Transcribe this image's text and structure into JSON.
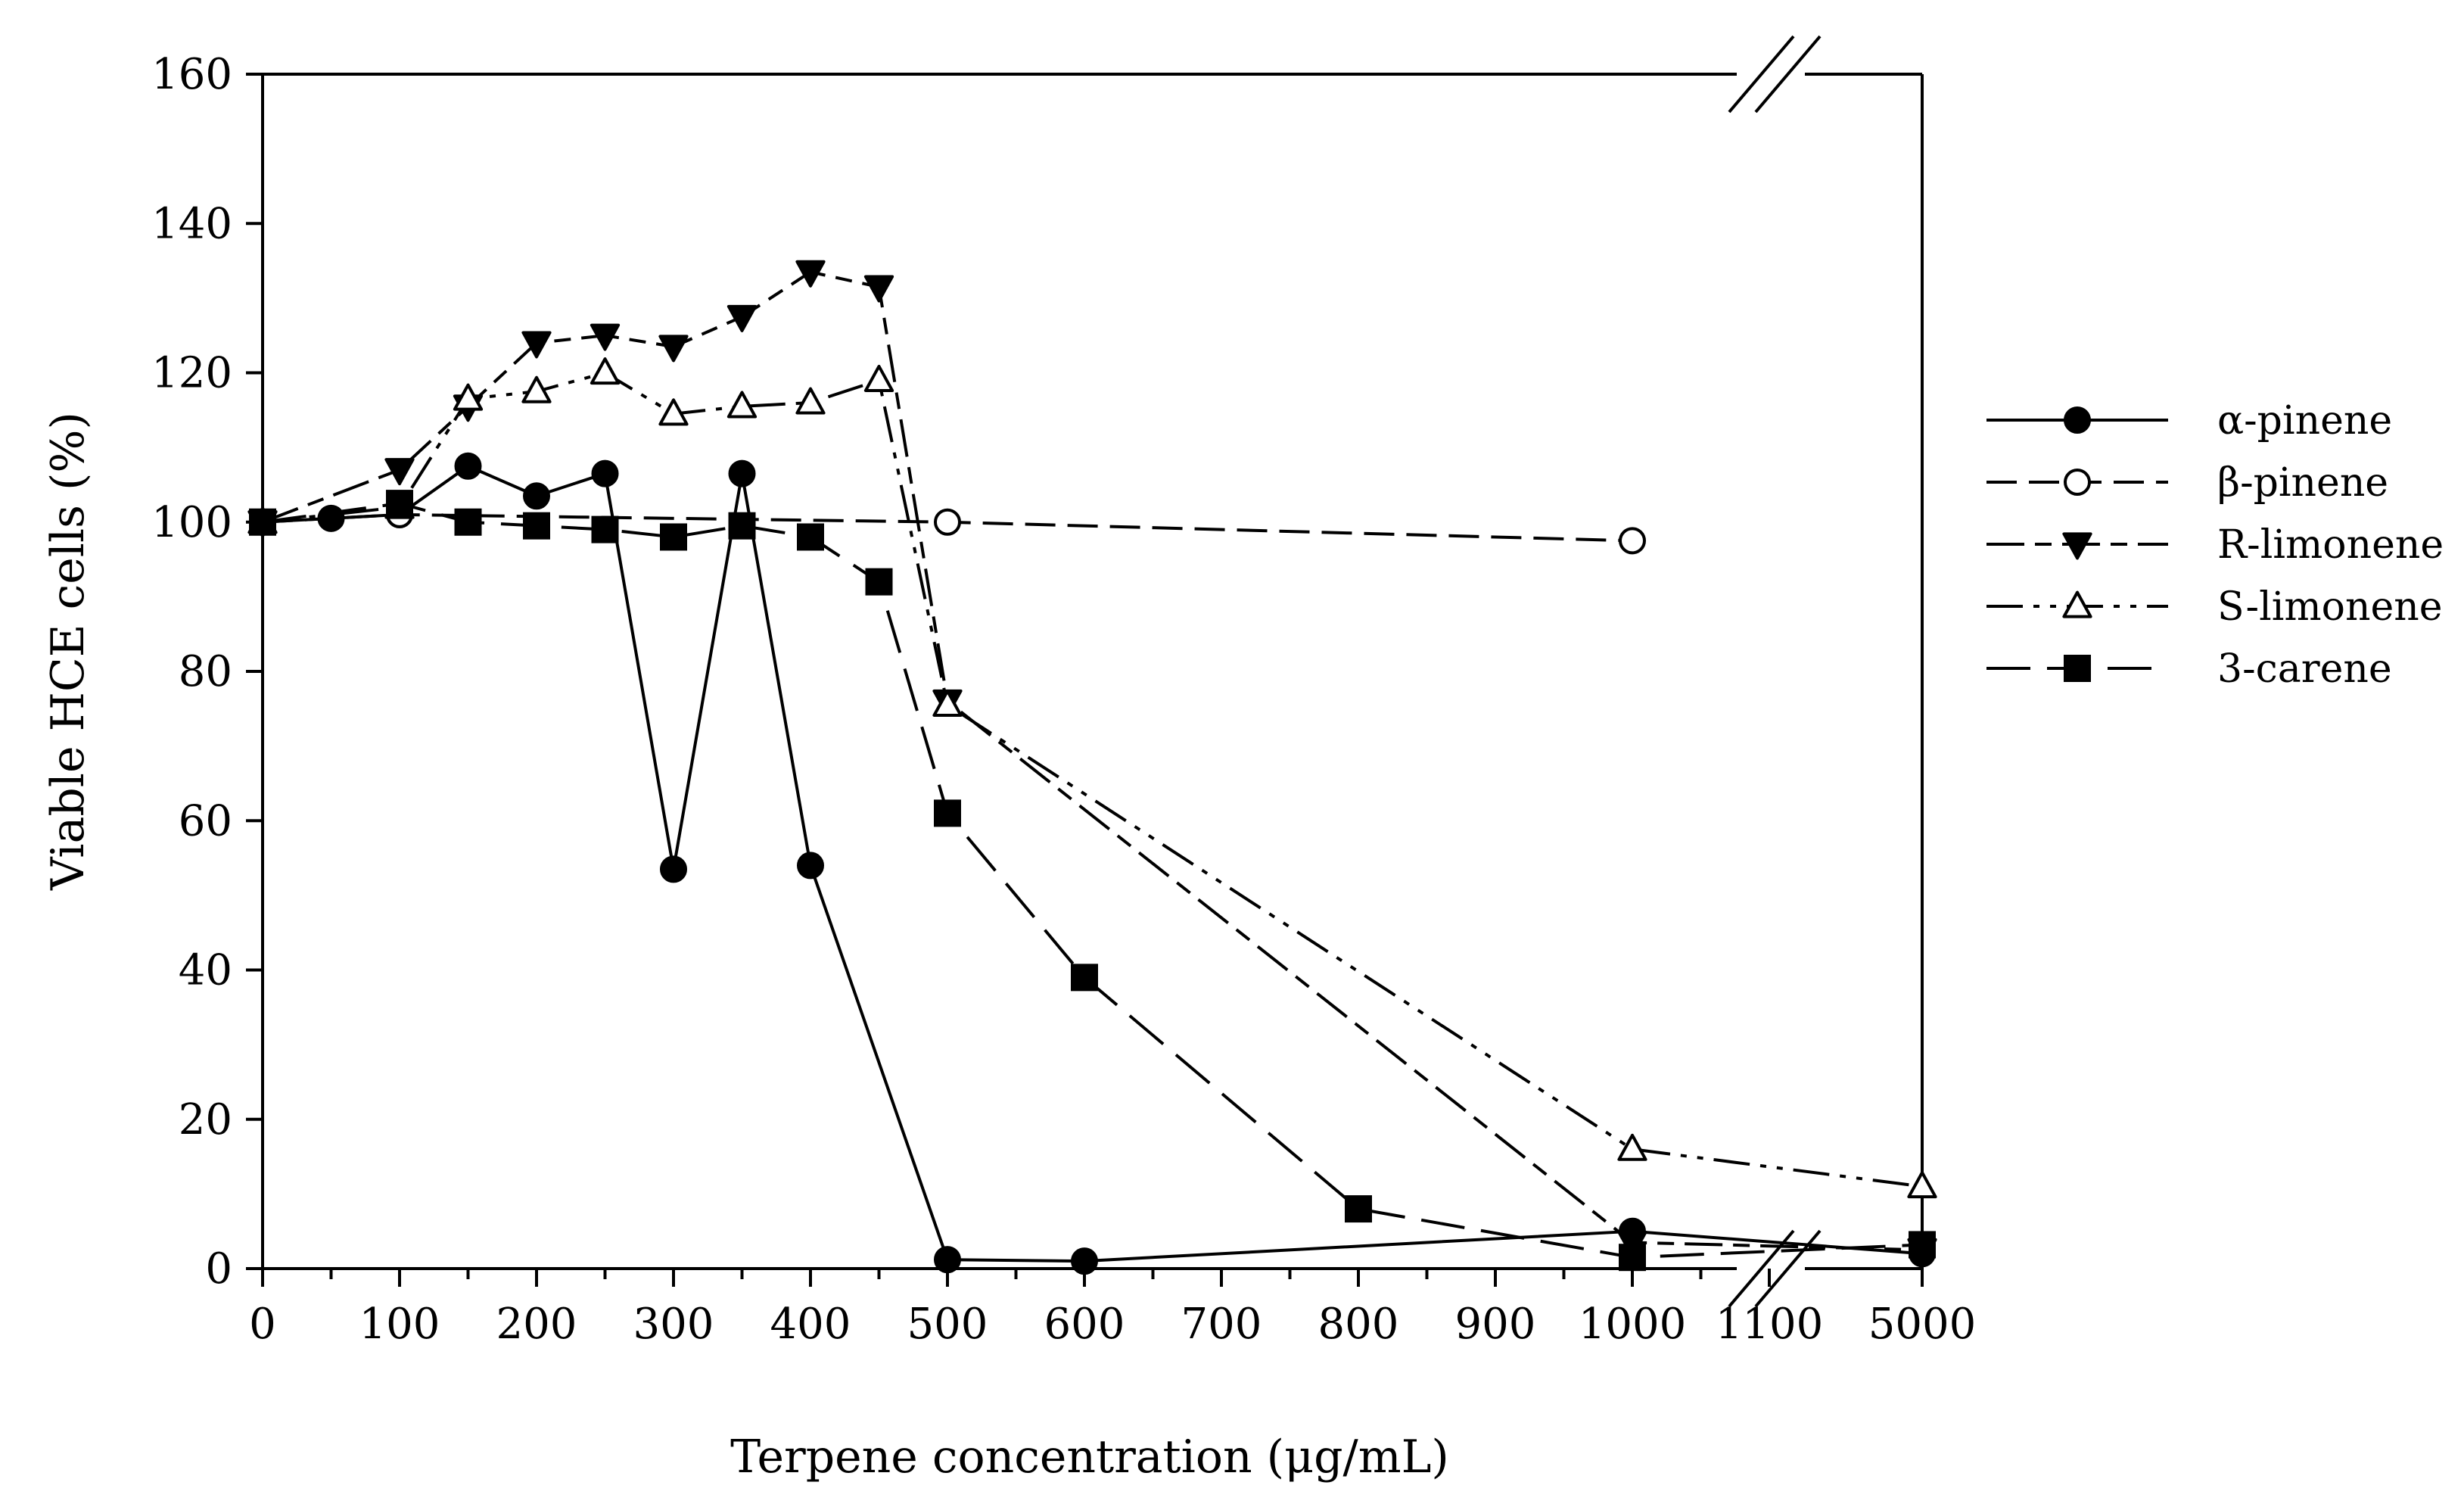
{
  "chart_data": {
    "type": "line",
    "title": "",
    "xlabel": "Terpene concentration (μg/mL)",
    "ylabel": "Viable HCE cells (%)",
    "ylim": [
      0,
      160
    ],
    "y_ticks": [
      "0",
      "20",
      "40",
      "60",
      "80",
      "100",
      "120",
      "140",
      "160"
    ],
    "x_ticks": [
      "0",
      "100",
      "200",
      "300",
      "400",
      "500",
      "600",
      "700",
      "800",
      "900",
      "1000",
      "1100",
      "5000"
    ],
    "x_axis_break": "between 1100 and 5000",
    "grid": false,
    "legend_position": "right",
    "series": [
      {
        "name": "α-pinene",
        "marker": "filled-circle",
        "line": "solid",
        "x": [
          0,
          50,
          100,
          150,
          200,
          250,
          300,
          350,
          400,
          500,
          600,
          1000,
          5000
        ],
        "y": [
          100,
          100.5,
          101,
          107.5,
          103.5,
          106.5,
          53.5,
          106.5,
          54,
          1.2,
          1,
          5,
          2
        ]
      },
      {
        "name": "β-pinene",
        "marker": "open-circle",
        "line": "dashed",
        "x": [
          0,
          100,
          500,
          1000
        ],
        "y": [
          100,
          101,
          100,
          97.5
        ]
      },
      {
        "name": "R-limonene",
        "marker": "filled-triangle-down",
        "line": "long-dash-short",
        "x": [
          0,
          100,
          150,
          200,
          250,
          300,
          350,
          400,
          450,
          500,
          1000,
          5000
        ],
        "y": [
          100,
          107,
          115.5,
          124,
          125,
          123.5,
          127.5,
          133.5,
          131.5,
          76,
          3.5,
          2.5
        ]
      },
      {
        "name": "S-limonene",
        "marker": "open-triangle-up",
        "line": "dash-dot-dot",
        "x": [
          0,
          100,
          150,
          200,
          250,
          300,
          350,
          400,
          450,
          500,
          1000,
          5000
        ],
        "y": [
          100,
          102,
          116.5,
          117.5,
          120,
          114.5,
          115.5,
          116,
          119,
          75.5,
          16,
          11
        ]
      },
      {
        "name": "3-carene",
        "marker": "filled-square",
        "line": "long-dash",
        "x": [
          0,
          100,
          150,
          200,
          250,
          300,
          350,
          400,
          450,
          500,
          600,
          800,
          1000,
          5000
        ],
        "y": [
          100,
          102.5,
          100,
          99.5,
          99,
          98,
          99.5,
          98,
          92,
          61,
          39,
          8,
          1.5,
          3.2
        ]
      }
    ]
  }
}
